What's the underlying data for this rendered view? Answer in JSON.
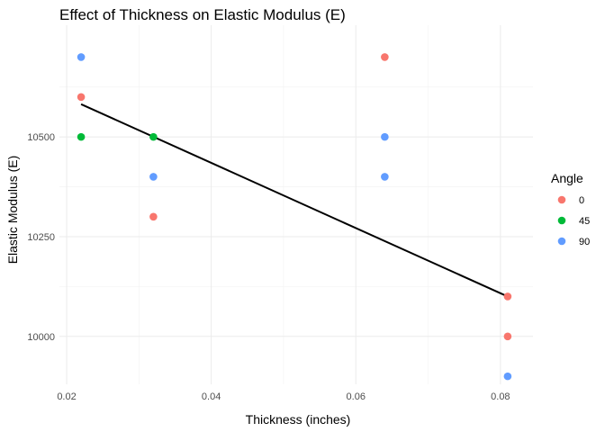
{
  "chart_data": {
    "type": "scatter",
    "title": "Effect of Thickness on Elastic Modulus (E)",
    "xlabel": "Thickness (inches)",
    "ylabel": "Elastic Modulus (E)",
    "xlim": [
      0.019,
      0.0845
    ],
    "ylim": [
      9880,
      10780
    ],
    "x_ticks": [
      0.02,
      0.04,
      0.06,
      0.08
    ],
    "x_tick_labels": [
      "0.02",
      "0.04",
      "0.06",
      "0.08"
    ],
    "y_ticks": [
      10000,
      10250,
      10500
    ],
    "y_tick_labels": [
      "10000",
      "10250",
      "10500"
    ],
    "grid": true,
    "legend": {
      "title": "Angle",
      "position": "right"
    },
    "series": [
      {
        "name": "0",
        "color": "#F8766D",
        "points": [
          [
            0.022,
            10600
          ],
          [
            0.032,
            10300
          ],
          [
            0.064,
            10700
          ],
          [
            0.081,
            10100
          ],
          [
            0.081,
            10000
          ]
        ]
      },
      {
        "name": "45",
        "color": "#00BA38",
        "points": [
          [
            0.022,
            10500
          ],
          [
            0.032,
            10500
          ]
        ]
      },
      {
        "name": "90",
        "color": "#619CFF",
        "points": [
          [
            0.022,
            10700
          ],
          [
            0.032,
            10400
          ],
          [
            0.064,
            10500
          ],
          [
            0.064,
            10400
          ],
          [
            0.081,
            9900
          ]
        ]
      }
    ],
    "trend_line": {
      "color": "#000000",
      "points": [
        [
          0.022,
          10582
        ],
        [
          0.081,
          10100
        ]
      ]
    }
  }
}
